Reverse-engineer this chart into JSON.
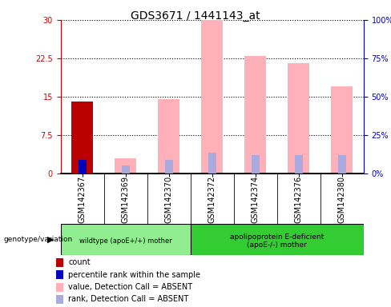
{
  "title": "GDS3671 / 1441143_at",
  "samples": [
    "GSM142367",
    "GSM142369",
    "GSM142370",
    "GSM142372",
    "GSM142374",
    "GSM142376",
    "GSM142380"
  ],
  "count_values": [
    14.0,
    null,
    null,
    null,
    null,
    null,
    null
  ],
  "percentile_rank": [
    9.0,
    null,
    null,
    null,
    null,
    null,
    null
  ],
  "absent_value": [
    null,
    3.0,
    14.5,
    30.0,
    23.0,
    21.5,
    17.0
  ],
  "absent_rank": [
    null,
    5.0,
    9.0,
    13.5,
    12.0,
    12.0,
    12.0
  ],
  "absent_value_gsm367": 14.0,
  "absent_rank_gsm367": 9.0,
  "ylim_left": [
    0,
    30
  ],
  "ylim_right": [
    0,
    100
  ],
  "yticks_left": [
    0,
    7.5,
    15,
    22.5,
    30
  ],
  "yticks_right": [
    0,
    25,
    50,
    75,
    100
  ],
  "ytick_labels_left": [
    "0",
    "7.5",
    "15",
    "22.5",
    "30"
  ],
  "ytick_labels_right": [
    "0%",
    "25%",
    "50%",
    "75%",
    "100%"
  ],
  "group0_label": "wildtype (apoE+/+) mother",
  "group0_n": 3,
  "group0_color": "#90EE90",
  "group1_label": "apolipoprotein E-deficient\n(apoE-/-) mother",
  "group1_n": 4,
  "group1_color": "#33CC33",
  "color_red": "#BB0000",
  "color_blue": "#0000BB",
  "color_pink": "#FFB0B8",
  "color_lightblue": "#AAAADD",
  "grid_color": "#000000",
  "bg_color": "#FFFFFF",
  "plot_bg": "#FFFFFF",
  "left_yaxis_color": "#CC0000",
  "right_yaxis_color": "#0000CC",
  "title_fontsize": 10,
  "legend_fontsize": 7,
  "tick_fontsize": 7,
  "genotype_label": "genotype/variation"
}
